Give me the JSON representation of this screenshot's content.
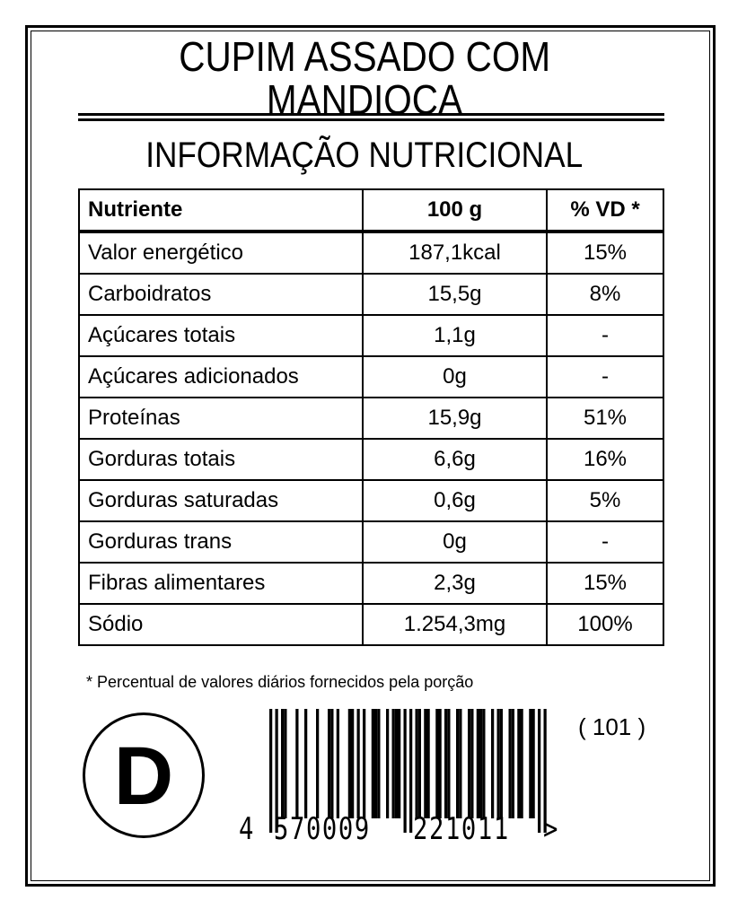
{
  "product": {
    "title_line1": "CUPIM ASSADO COM",
    "title_line2": "MANDIOCA"
  },
  "section_title": "INFORMAÇÃO NUTRICIONAL",
  "table": {
    "headers": [
      "Nutriente",
      "100 g",
      "% VD *"
    ],
    "rows": [
      [
        "Valor energético",
        "187,1kcal",
        "15%"
      ],
      [
        "Carboidratos",
        "15,5g",
        "8%"
      ],
      [
        "Açúcares totais",
        "1,1g",
        "-"
      ],
      [
        "Açúcares adicionados",
        "0g",
        "-"
      ],
      [
        "Proteínas",
        "15,9g",
        "51%"
      ],
      [
        "Gorduras totais",
        "6,6g",
        "16%"
      ],
      [
        "Gorduras saturadas",
        "0,6g",
        "5%"
      ],
      [
        "Gorduras trans",
        "0g",
        "-"
      ],
      [
        "Fibras alimentares",
        "2,3g",
        "15%"
      ],
      [
        "Sódio",
        "1.254,3mg",
        "100%"
      ]
    ]
  },
  "footnote": "* Percentual de valores diários fornecidos pela porção",
  "mark_letter": "D",
  "barcode": {
    "first": "4",
    "left": "570009",
    "right": "221011",
    "end": ">",
    "full": "4570009221011"
  },
  "code_label": "( 101 )"
}
